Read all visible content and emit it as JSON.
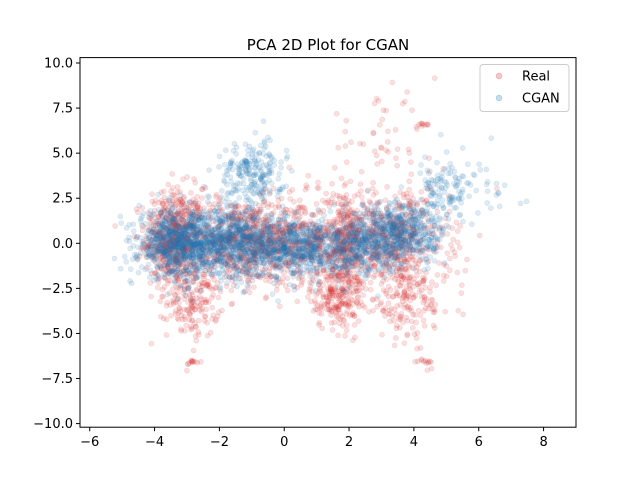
{
  "chart_data": {
    "type": "scatter",
    "title": "PCA 2D Plot for CGAN",
    "xlabel": "",
    "ylabel": "",
    "xlim": [
      -6.3,
      9.0
    ],
    "ylim": [
      -10.2,
      10.3
    ],
    "xticks": [
      -6,
      -4,
      -2,
      0,
      2,
      4,
      6,
      8
    ],
    "yticks": [
      -10.0,
      -7.5,
      -5.0,
      -2.5,
      0.0,
      2.5,
      5.0,
      7.5,
      10.0
    ],
    "xtick_labels": [
      "−6",
      "−4",
      "−2",
      "0",
      "2",
      "4",
      "6",
      "8"
    ],
    "ytick_labels": [
      "−10.0",
      "−7.5",
      "−5.0",
      "−2.5",
      "0.0",
      "2.5",
      "5.0",
      "7.5",
      "10.0"
    ],
    "grid": false,
    "legend_position": "top-right",
    "series": [
      {
        "name": "Real",
        "color": "#d62728",
        "alpha": 0.15,
        "clusters": [
          {
            "cx": -3.4,
            "cy": 0.3,
            "sx": 0.45,
            "sy": 1.4,
            "n": 500
          },
          {
            "cx": -2.8,
            "cy": -3.2,
            "sx": 0.4,
            "sy": 1.0,
            "n": 160
          },
          {
            "cx": -1.5,
            "cy": 0.1,
            "sx": 1.0,
            "sy": 1.2,
            "n": 600
          },
          {
            "cx": 0.5,
            "cy": 0.2,
            "sx": 0.9,
            "sy": 1.2,
            "n": 450
          },
          {
            "cx": 1.6,
            "cy": -3.0,
            "sx": 0.4,
            "sy": 0.9,
            "n": 180
          },
          {
            "cx": 1.9,
            "cy": -0.2,
            "sx": 0.3,
            "sy": 1.6,
            "n": 250
          },
          {
            "cx": 3.3,
            "cy": 0.2,
            "sx": 0.9,
            "sy": 1.3,
            "n": 500
          },
          {
            "cx": 3.8,
            "cy": -3.0,
            "sx": 0.7,
            "sy": 1.3,
            "n": 180
          },
          {
            "cx": 3.0,
            "cy": 5.2,
            "sx": 0.9,
            "sy": 1.4,
            "n": 60
          },
          {
            "cx": -2.8,
            "cy": -6.6,
            "sx": 0.15,
            "sy": 0.1,
            "n": 12
          },
          {
            "cx": 4.3,
            "cy": -6.6,
            "sx": 0.15,
            "sy": 0.1,
            "n": 12
          },
          {
            "cx": 4.3,
            "cy": 6.6,
            "sx": 0.1,
            "sy": 0.05,
            "n": 8
          }
        ]
      },
      {
        "name": "CGAN",
        "color": "#1f77b4",
        "alpha": 0.15,
        "clusters": [
          {
            "cx": -3.4,
            "cy": 0.0,
            "sx": 0.55,
            "sy": 0.9,
            "n": 600
          },
          {
            "cx": -1.8,
            "cy": 0.0,
            "sx": 0.9,
            "sy": 0.95,
            "n": 900
          },
          {
            "cx": -1.0,
            "cy": 3.8,
            "sx": 0.5,
            "sy": 0.9,
            "n": 220
          },
          {
            "cx": 0.4,
            "cy": -0.2,
            "sx": 0.85,
            "sy": 0.85,
            "n": 650
          },
          {
            "cx": 2.3,
            "cy": -0.2,
            "sx": 0.6,
            "sy": 0.8,
            "n": 300
          },
          {
            "cx": 3.6,
            "cy": 0.6,
            "sx": 0.7,
            "sy": 0.9,
            "n": 550
          },
          {
            "cx": 5.0,
            "cy": 3.0,
            "sx": 0.4,
            "sy": 0.8,
            "n": 90
          },
          {
            "cx": 6.0,
            "cy": 3.2,
            "sx": 0.6,
            "sy": 1.0,
            "n": 30
          }
        ]
      }
    ]
  }
}
